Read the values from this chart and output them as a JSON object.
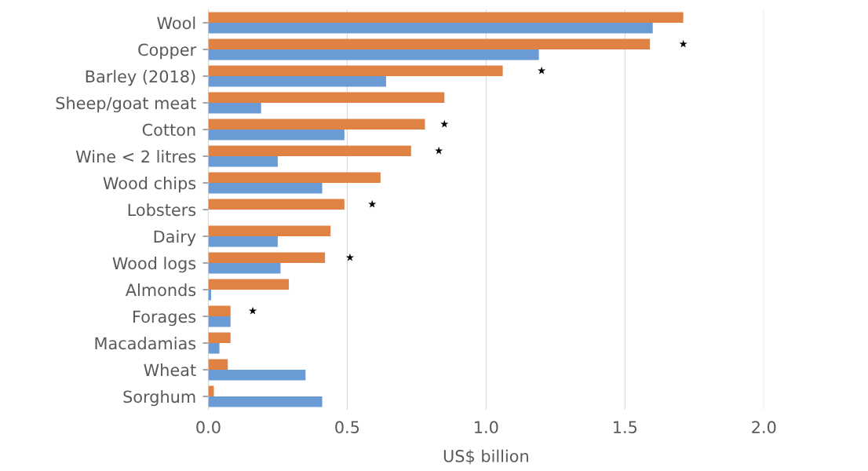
{
  "chart_data": {
    "type": "bar",
    "orientation": "horizontal",
    "xlabel": "US$ billion",
    "categories": [
      "Wool",
      "Copper",
      "Barley (2018)",
      "Sheep/goat meat",
      "Cotton",
      "Wine < 2 litres",
      "Wood chips",
      "Lobsters",
      "Dairy",
      "Wood logs",
      "Almonds",
      "Forages",
      "Macadamias",
      "Wheat",
      "Sorghum"
    ],
    "series": [
      {
        "color": "#e08243",
        "values": [
          1.71,
          1.59,
          1.06,
          0.85,
          0.78,
          0.73,
          0.62,
          0.49,
          0.44,
          0.42,
          0.29,
          0.08,
          0.08,
          0.07,
          0.02
        ]
      },
      {
        "color": "#6a9bd4",
        "values": [
          1.6,
          1.19,
          0.64,
          0.19,
          0.49,
          0.25,
          0.41,
          0,
          0.25,
          0.26,
          0.01,
          0.08,
          0.04,
          0.35,
          0.41
        ]
      },
      {
        "type": "scatter",
        "color": "#000000",
        "values": [
          null,
          1.71,
          1.2,
          null,
          0.85,
          0.83,
          null,
          0.59,
          null,
          0.51,
          null,
          0.16,
          null,
          null,
          null
        ]
      }
    ],
    "marker": "star",
    "xlim": [
      0,
      2.0
    ],
    "xticks": [
      {
        "value": 0,
        "label": "0.0"
      },
      0.5,
      {
        "value": 1,
        "label": "1.0"
      },
      1.5,
      {
        "value": 2,
        "label": "2.0"
      }
    ],
    "grid": "x"
  }
}
